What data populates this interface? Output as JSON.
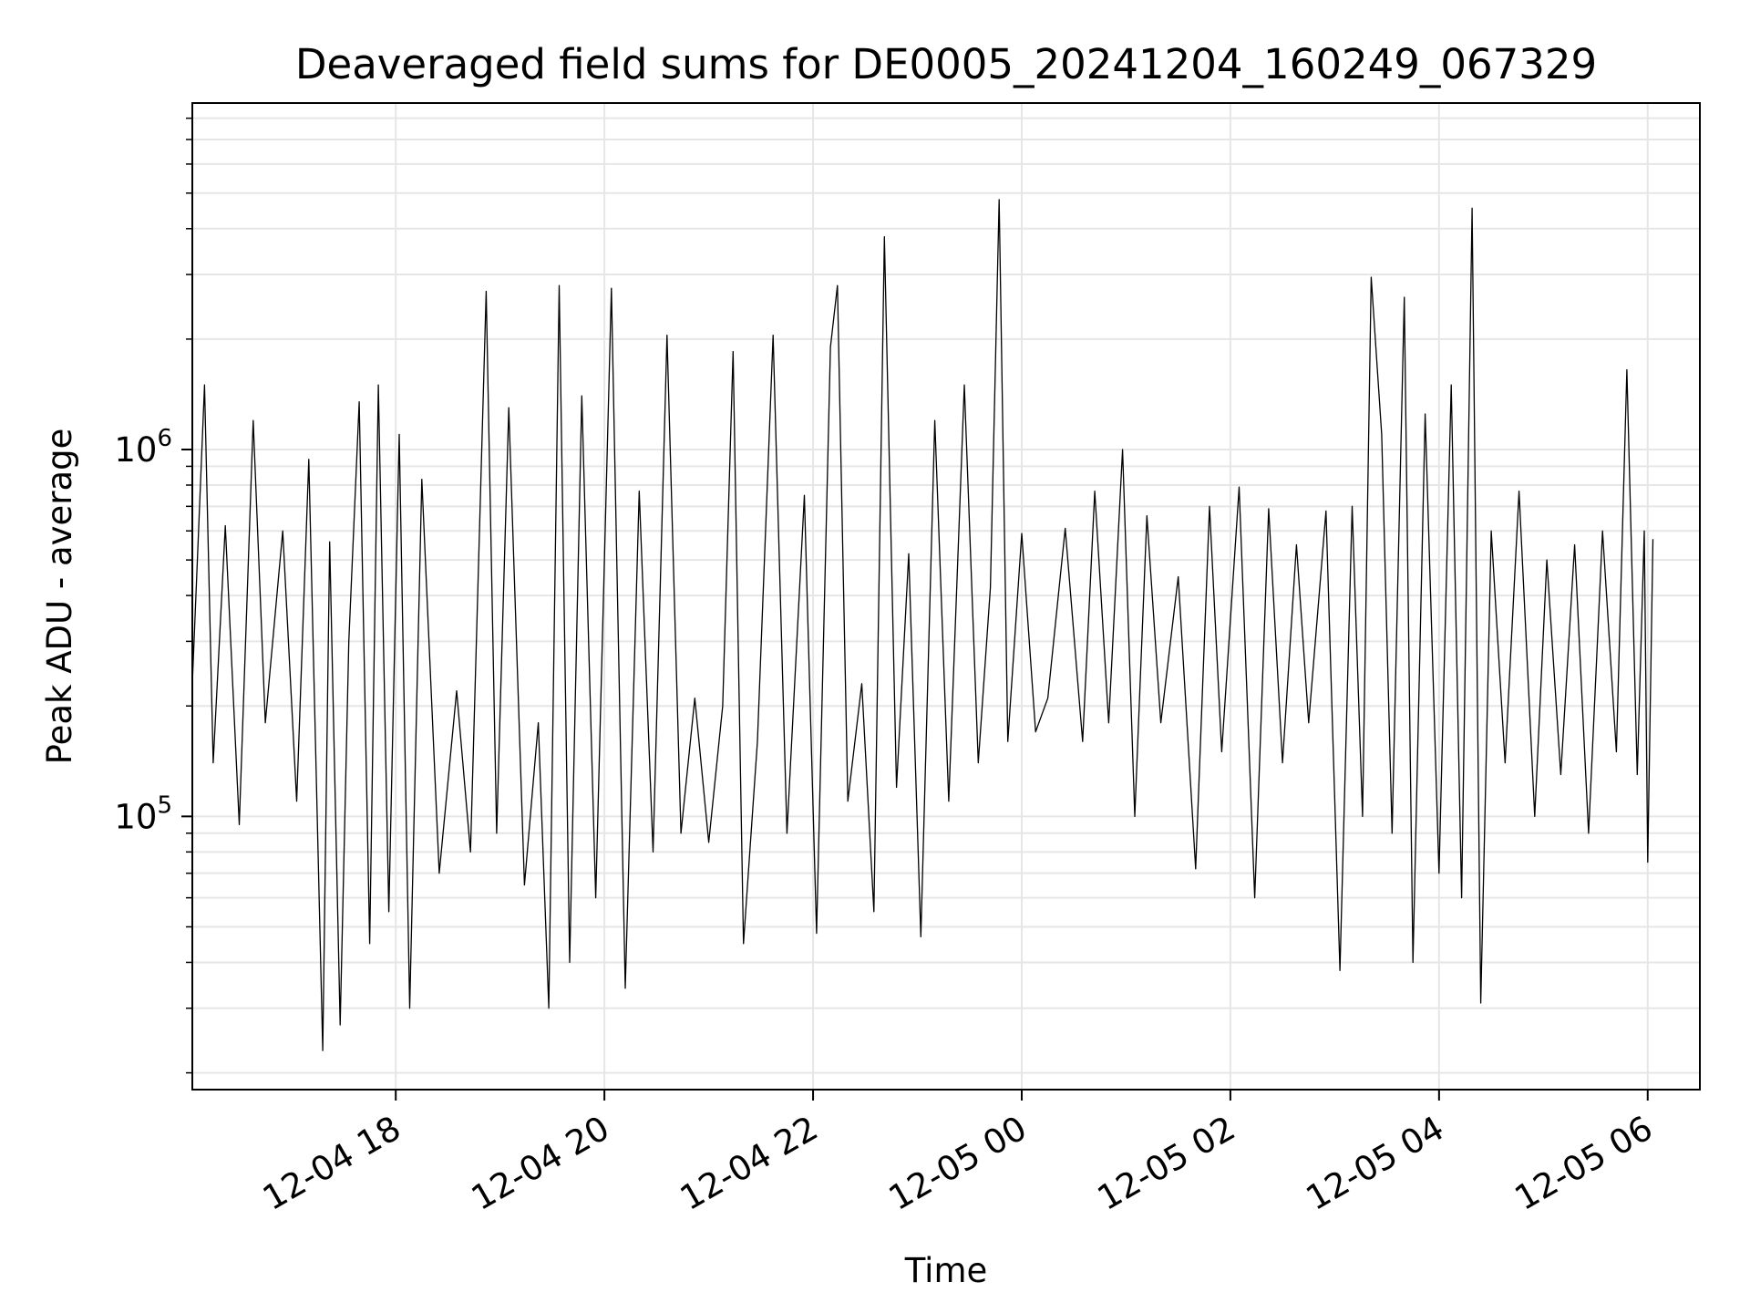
{
  "chart_data": {
    "type": "line",
    "title": "Deaveraged field sums for DE0005_20241204_160249_067329",
    "xlabel": "Time",
    "ylabel": "Peak ADU - average",
    "yscale": "log",
    "ylim": [
      18000,
      8800000
    ],
    "xlim": [
      "2024-12-04 16:03",
      "2024-12-05 06:30"
    ],
    "grid": true,
    "line_color": "#000000",
    "grid_color": "#e6e6e6",
    "x_ticks": [
      {
        "t": "2024-12-04 18:00",
        "label": "12-04 18"
      },
      {
        "t": "2024-12-04 20:00",
        "label": "12-04 20"
      },
      {
        "t": "2024-12-04 22:00",
        "label": "12-04 22"
      },
      {
        "t": "2024-12-05 00:00",
        "label": "12-05 00"
      },
      {
        "t": "2024-12-05 02:00",
        "label": "12-05 02"
      },
      {
        "t": "2024-12-05 04:00",
        "label": "12-05 04"
      },
      {
        "t": "2024-12-05 06:00",
        "label": "12-05 06"
      }
    ],
    "y_ticks": [
      {
        "value": 100000,
        "base": "10",
        "exp": "5"
      },
      {
        "value": 1000000,
        "base": "10",
        "exp": "6"
      }
    ],
    "series": [
      {
        "points": [
          [
            "2024-12-04 16:03",
            230000
          ],
          [
            "2024-12-04 16:10",
            1500000
          ],
          [
            "2024-12-04 16:15",
            140000
          ],
          [
            "2024-12-04 16:22",
            620000
          ],
          [
            "2024-12-04 16:30",
            95000
          ],
          [
            "2024-12-04 16:38",
            1200000
          ],
          [
            "2024-12-04 16:45",
            180000
          ],
          [
            "2024-12-04 16:55",
            600000
          ],
          [
            "2024-12-04 17:03",
            110000
          ],
          [
            "2024-12-04 17:10",
            940000
          ],
          [
            "2024-12-04 17:18",
            23000
          ],
          [
            "2024-12-04 17:22",
            560000
          ],
          [
            "2024-12-04 17:28",
            27000
          ],
          [
            "2024-12-04 17:33",
            300000
          ],
          [
            "2024-12-04 17:39",
            1350000
          ],
          [
            "2024-12-04 17:45",
            45000
          ],
          [
            "2024-12-04 17:50",
            1500000
          ],
          [
            "2024-12-04 17:56",
            55000
          ],
          [
            "2024-12-04 18:02",
            1100000
          ],
          [
            "2024-12-04 18:08",
            30000
          ],
          [
            "2024-12-04 18:15",
            830000
          ],
          [
            "2024-12-04 18:25",
            70000
          ],
          [
            "2024-12-04 18:35",
            220000
          ],
          [
            "2024-12-04 18:43",
            80000
          ],
          [
            "2024-12-04 18:52",
            2700000
          ],
          [
            "2024-12-04 18:58",
            90000
          ],
          [
            "2024-12-04 19:05",
            1300000
          ],
          [
            "2024-12-04 19:14",
            65000
          ],
          [
            "2024-12-04 19:22",
            180000
          ],
          [
            "2024-12-04 19:28",
            30000
          ],
          [
            "2024-12-04 19:34",
            2800000
          ],
          [
            "2024-12-04 19:40",
            40000
          ],
          [
            "2024-12-04 19:47",
            1400000
          ],
          [
            "2024-12-04 19:55",
            60000
          ],
          [
            "2024-12-04 20:04",
            2750000
          ],
          [
            "2024-12-04 20:12",
            34000
          ],
          [
            "2024-12-04 20:20",
            770000
          ],
          [
            "2024-12-04 20:28",
            80000
          ],
          [
            "2024-12-04 20:36",
            2050000
          ],
          [
            "2024-12-04 20:44",
            90000
          ],
          [
            "2024-12-04 20:52",
            210000
          ],
          [
            "2024-12-04 21:00",
            85000
          ],
          [
            "2024-12-04 21:08",
            200000
          ],
          [
            "2024-12-04 21:14",
            1850000
          ],
          [
            "2024-12-04 21:20",
            45000
          ],
          [
            "2024-12-04 21:28",
            160000
          ],
          [
            "2024-12-04 21:37",
            2050000
          ],
          [
            "2024-12-04 21:45",
            90000
          ],
          [
            "2024-12-04 21:55",
            750000
          ],
          [
            "2024-12-04 22:02",
            48000
          ],
          [
            "2024-12-04 22:10",
            1900000
          ],
          [
            "2024-12-04 22:14",
            2800000
          ],
          [
            "2024-12-04 22:20",
            110000
          ],
          [
            "2024-12-04 22:28",
            230000
          ],
          [
            "2024-12-04 22:35",
            55000
          ],
          [
            "2024-12-04 22:41",
            3800000
          ],
          [
            "2024-12-04 22:48",
            120000
          ],
          [
            "2024-12-04 22:55",
            520000
          ],
          [
            "2024-12-04 23:02",
            47000
          ],
          [
            "2024-12-04 23:10",
            1200000
          ],
          [
            "2024-12-04 23:18",
            110000
          ],
          [
            "2024-12-04 23:27",
            1500000
          ],
          [
            "2024-12-04 23:35",
            140000
          ],
          [
            "2024-12-04 23:42",
            420000
          ],
          [
            "2024-12-04 23:47",
            4800000
          ],
          [
            "2024-12-04 23:52",
            160000
          ],
          [
            "2024-12-05 00:00",
            590000
          ],
          [
            "2024-12-05 00:08",
            170000
          ],
          [
            "2024-12-05 00:15",
            210000
          ],
          [
            "2024-12-05 00:25",
            610000
          ],
          [
            "2024-12-05 00:35",
            160000
          ],
          [
            "2024-12-05 00:42",
            770000
          ],
          [
            "2024-12-05 00:50",
            180000
          ],
          [
            "2024-12-05 00:58",
            1000000
          ],
          [
            "2024-12-05 01:05",
            100000
          ],
          [
            "2024-12-05 01:12",
            660000
          ],
          [
            "2024-12-05 01:20",
            180000
          ],
          [
            "2024-12-05 01:30",
            450000
          ],
          [
            "2024-12-05 01:40",
            72000
          ],
          [
            "2024-12-05 01:48",
            700000
          ],
          [
            "2024-12-05 01:55",
            150000
          ],
          [
            "2024-12-05 02:05",
            790000
          ],
          [
            "2024-12-05 02:14",
            60000
          ],
          [
            "2024-12-05 02:22",
            690000
          ],
          [
            "2024-12-05 02:30",
            140000
          ],
          [
            "2024-12-05 02:38",
            550000
          ],
          [
            "2024-12-05 02:45",
            180000
          ],
          [
            "2024-12-05 02:55",
            680000
          ],
          [
            "2024-12-05 03:03",
            38000
          ],
          [
            "2024-12-05 03:10",
            700000
          ],
          [
            "2024-12-05 03:16",
            100000
          ],
          [
            "2024-12-05 03:21",
            2950000
          ],
          [
            "2024-12-05 03:27",
            1100000
          ],
          [
            "2024-12-05 03:33",
            90000
          ],
          [
            "2024-12-05 03:40",
            2600000
          ],
          [
            "2024-12-05 03:45",
            40000
          ],
          [
            "2024-12-05 03:52",
            1250000
          ],
          [
            "2024-12-05 04:00",
            70000
          ],
          [
            "2024-12-05 04:07",
            1500000
          ],
          [
            "2024-12-05 04:13",
            60000
          ],
          [
            "2024-12-05 04:19",
            4550000
          ],
          [
            "2024-12-05 04:24",
            31000
          ],
          [
            "2024-12-05 04:30",
            600000
          ],
          [
            "2024-12-05 04:38",
            140000
          ],
          [
            "2024-12-05 04:46",
            770000
          ],
          [
            "2024-12-05 04:55",
            100000
          ],
          [
            "2024-12-05 05:02",
            500000
          ],
          [
            "2024-12-05 05:10",
            130000
          ],
          [
            "2024-12-05 05:18",
            550000
          ],
          [
            "2024-12-05 05:26",
            90000
          ],
          [
            "2024-12-05 05:34",
            600000
          ],
          [
            "2024-12-05 05:42",
            150000
          ],
          [
            "2024-12-05 05:48",
            1650000
          ],
          [
            "2024-12-05 05:54",
            130000
          ],
          [
            "2024-12-05 05:58",
            600000
          ],
          [
            "2024-12-05 06:00",
            75000
          ],
          [
            "2024-12-05 06:03",
            570000
          ]
        ]
      }
    ]
  }
}
